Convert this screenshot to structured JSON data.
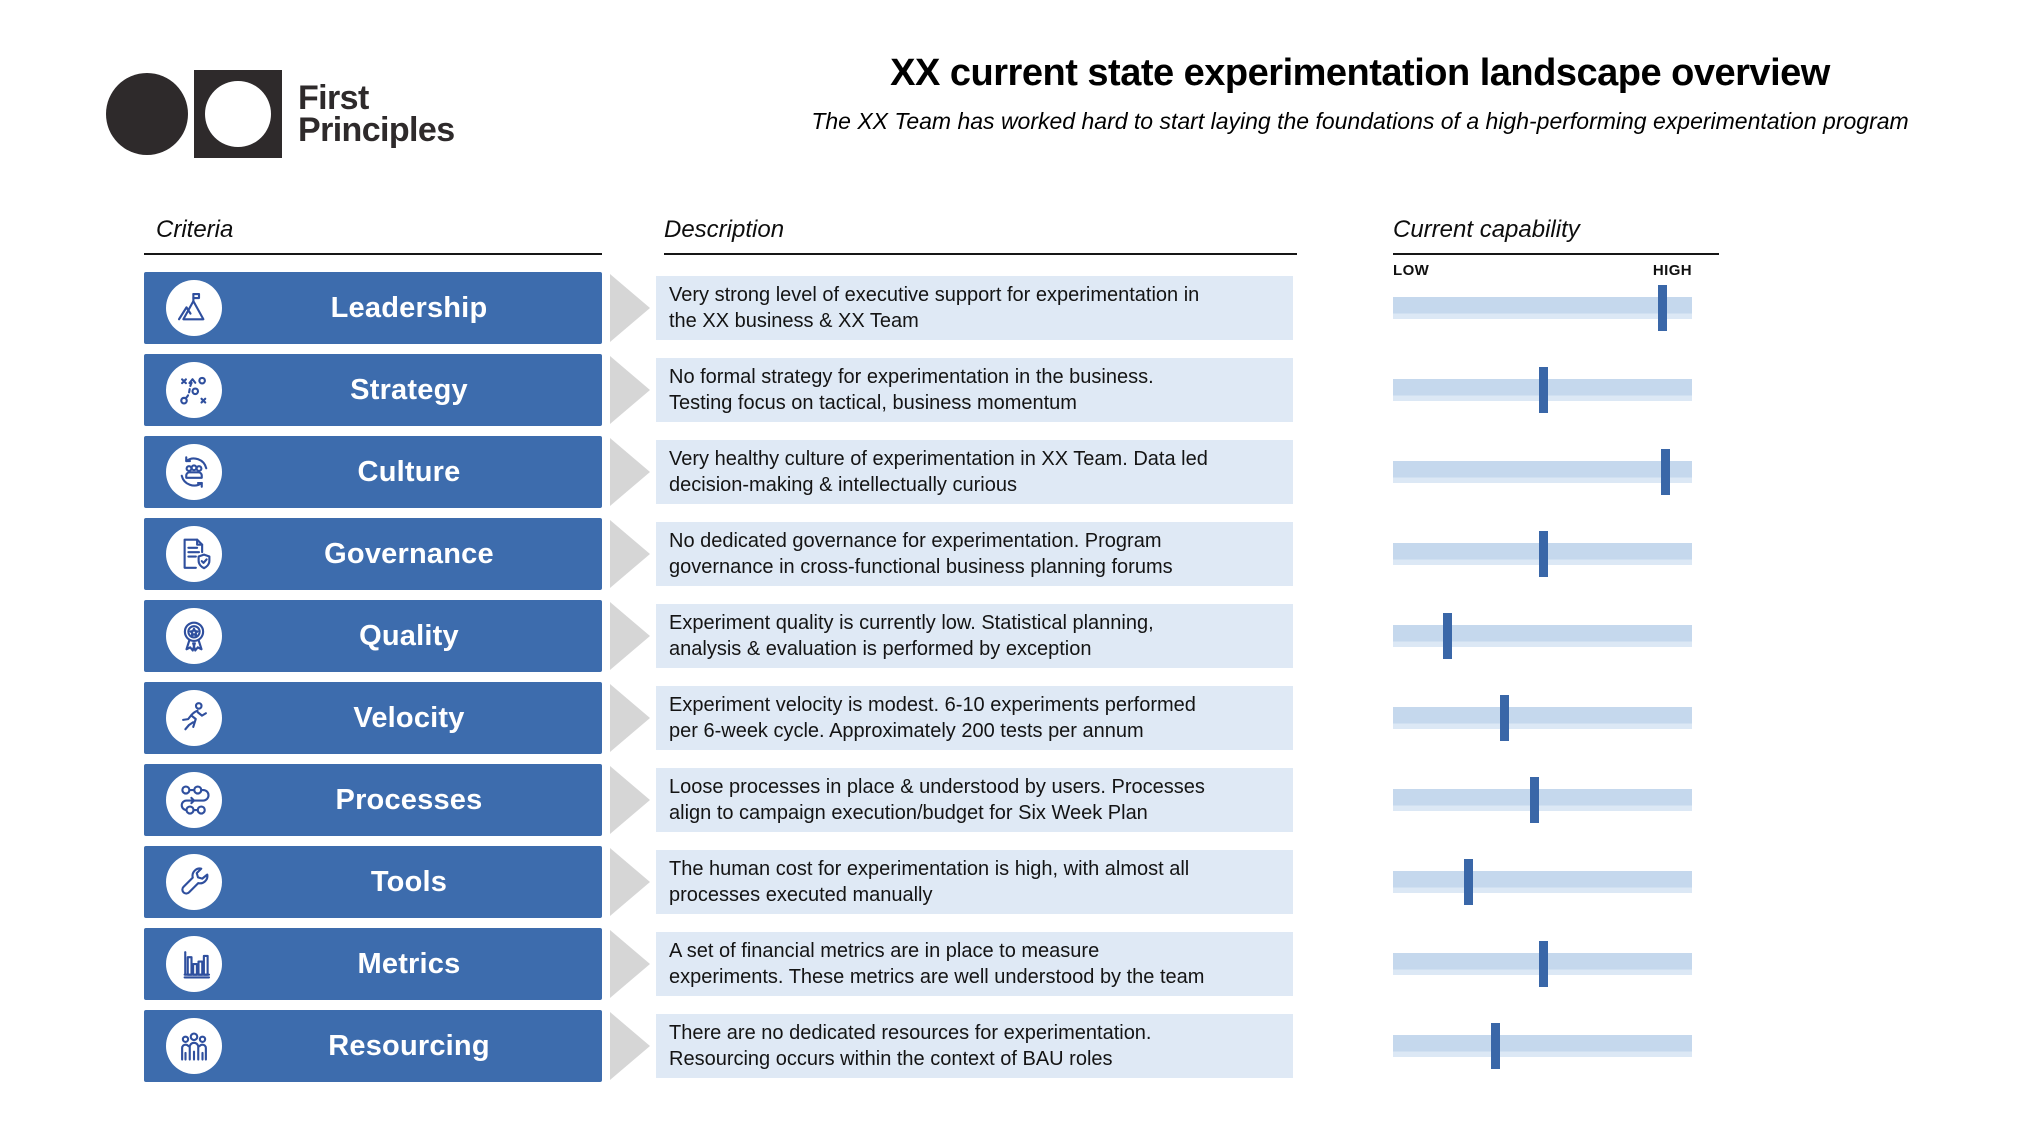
{
  "logo": {
    "line1": "First",
    "line2": "Principles"
  },
  "header": {
    "title": "XX current state experimentation landscape overview",
    "subtitle": "The XX Team has worked hard to start laying the foundations of a high-performing experimentation program"
  },
  "columns": {
    "criteria": "Criteria",
    "description": "Description",
    "capability": "Current capability"
  },
  "capability_scale": {
    "low": "LOW",
    "high": "HIGH"
  },
  "colors": {
    "bar_blue": "#3D6CAD",
    "icon_blue": "#2F4F9E",
    "marker_blue": "#3A67A8",
    "track_blue": "#C5D8ED",
    "track_blue_light": "#DCE8F5",
    "desc_bg": "#DFE9F5",
    "arrow_gray": "#D6D6D6",
    "ink": "#2E2A2B"
  },
  "rows": [
    {
      "label": "Leadership",
      "icon": "mountain-flag-icon",
      "description_lines": [
        "Very strong level of executive support for experimentation in",
        "the XX business & XX Team"
      ],
      "capability_percent": 90
    },
    {
      "label": "Strategy",
      "icon": "strategy-plan-icon",
      "description_lines": [
        "No formal strategy for experimentation in the business.",
        "Testing focus on tactical, business momentum"
      ],
      "capability_percent": 50
    },
    {
      "label": "Culture",
      "icon": "people-cycle-icon",
      "description_lines": [
        "Very healthy culture of experimentation in XX Team. Data led",
        "decision-making & intellectually curious"
      ],
      "capability_percent": 91
    },
    {
      "label": "Governance",
      "icon": "document-shield-icon",
      "description_lines": [
        "No dedicated governance for experimentation. Program",
        "governance in cross-functional business planning forums"
      ],
      "capability_percent": 50
    },
    {
      "label": "Quality",
      "icon": "award-ribbon-icon",
      "description_lines": [
        "Experiment quality is currently low. Statistical planning,",
        "analysis & evaluation is performed by exception"
      ],
      "capability_percent": 18
    },
    {
      "label": "Velocity",
      "icon": "running-person-icon",
      "description_lines": [
        "Experiment velocity is modest. 6-10 experiments performed",
        "per 6-week cycle. Approximately 200 tests per annum"
      ],
      "capability_percent": 37
    },
    {
      "label": "Processes",
      "icon": "process-flow-icon",
      "description_lines": [
        "Loose processes in place & understood by users. Processes",
        "align to campaign execution/budget  for Six Week Plan"
      ],
      "capability_percent": 47
    },
    {
      "label": "Tools",
      "icon": "wrench-icon",
      "description_lines": [
        "The human cost for experimentation is high, with almost all",
        "processes executed manually"
      ],
      "capability_percent": 25
    },
    {
      "label": "Metrics",
      "icon": "bar-chart-icon",
      "description_lines": [
        "A set of financial metrics are in place to measure",
        "experiments. These metrics are well understood by the team"
      ],
      "capability_percent": 50
    },
    {
      "label": "Resourcing",
      "icon": "people-group-icon",
      "description_lines": [
        "There are no dedicated resources for experimentation.",
        "Resourcing occurs within the context of BAU roles"
      ],
      "capability_percent": 34
    }
  ]
}
